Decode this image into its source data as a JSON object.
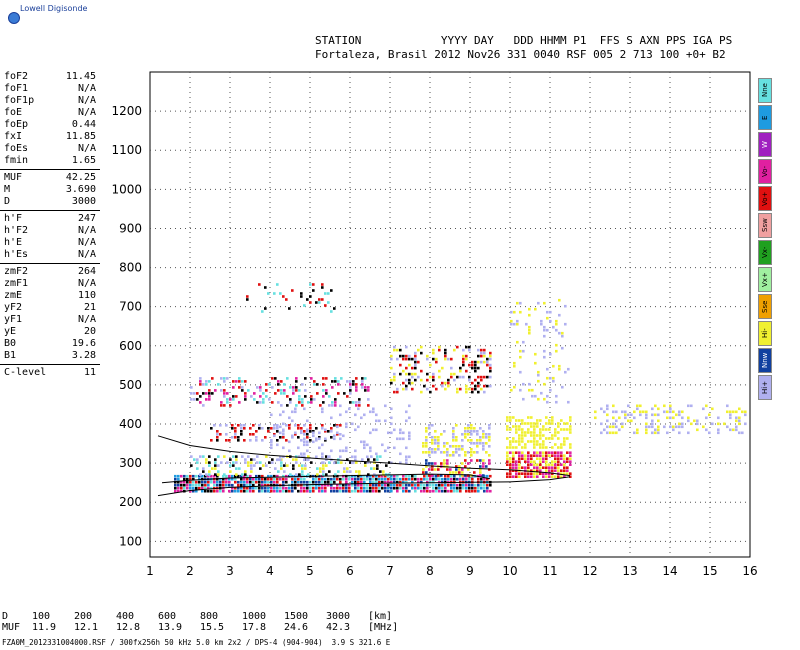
{
  "logo": {
    "text": "Lowell Digisonde",
    "icon": "globe-icon"
  },
  "header": {
    "line1": "STATION            YYYY DAY   DDD HHMM P1  FFS S AXN PPS IGA PS",
    "line2": "Fortaleza, Brasil 2012 Nov26 331 0040 RSF 005 2 713 100 +0+ B2"
  },
  "params": [
    [
      {
        "name": "foF2",
        "value": "11.45"
      },
      {
        "name": "foF1",
        "value": "N/A"
      },
      {
        "name": "foF1p",
        "value": "N/A"
      },
      {
        "name": "foE",
        "value": "N/A"
      },
      {
        "name": "foEp",
        "value": "0.44"
      },
      {
        "name": "fxI",
        "value": "11.85"
      },
      {
        "name": "foEs",
        "value": "N/A"
      },
      {
        "name": "fmin",
        "value": "1.65"
      }
    ],
    [
      {
        "name": "MUF",
        "value": "42.25"
      },
      {
        "name": "M",
        "value": "3.690"
      },
      {
        "name": "D",
        "value": "3000"
      }
    ],
    [
      {
        "name": "h'F",
        "value": "247"
      },
      {
        "name": "h'F2",
        "value": "N/A"
      },
      {
        "name": "h'E",
        "value": "N/A"
      },
      {
        "name": "h'Es",
        "value": "N/A"
      }
    ],
    [
      {
        "name": "zmF2",
        "value": "264"
      },
      {
        "name": "zmF1",
        "value": "N/A"
      },
      {
        "name": "zmE",
        "value": "110"
      },
      {
        "name": "yF2",
        "value": "21"
      },
      {
        "name": "yF1",
        "value": "N/A"
      },
      {
        "name": "yE",
        "value": "20"
      },
      {
        "name": "B0",
        "value": "19.6"
      },
      {
        "name": "B1",
        "value": "3.28"
      }
    ],
    [
      {
        "name": "C-level",
        "value": "11"
      }
    ]
  ],
  "legend": [
    {
      "label": "Nne",
      "color": "#66e0e0"
    },
    {
      "label": "E",
      "color": "#1e9be0"
    },
    {
      "label": "W",
      "color": "#a020c0"
    },
    {
      "label": "Vo-",
      "color": "#e020a0"
    },
    {
      "label": "Vo+",
      "color": "#e01010"
    },
    {
      "label": "Ssw",
      "color": "#f0a0a0"
    },
    {
      "label": "Vx-",
      "color": "#20a020"
    },
    {
      "label": "Vx+",
      "color": "#a0f0a0"
    },
    {
      "label": "Sse",
      "color": "#f0a000"
    },
    {
      "label": "Hi-",
      "color": "#f0f030"
    },
    {
      "label": "Nnw",
      "color": "#1040a0"
    },
    {
      "label": "Hi+",
      "color": "#b0b0f0"
    }
  ],
  "bottom": {
    "d_label": "D",
    "d_values": [
      "100",
      "200",
      "400",
      "600",
      "800",
      "1000",
      "1500",
      "3000",
      "[km]"
    ],
    "muf_label": "MUF",
    "muf_values": [
      "11.9",
      "12.1",
      "12.8",
      "13.9",
      "15.5",
      "17.8",
      "24.6",
      "42.3",
      "[MHz]"
    ]
  },
  "footer": "FZA0M_2012331004000.RSF / 300fx256h 50 kHz 5.0 km 2x2 / DPS-4 (904-904)  3.9 S 321.6 E",
  "chart_data": {
    "type": "scatter",
    "xlim": [
      1,
      16
    ],
    "ylim": [
      60,
      1300
    ],
    "xticks": [
      "1",
      "2",
      "3",
      "4",
      "5",
      "6",
      "7",
      "8",
      "9",
      "10",
      "11",
      "12",
      "13",
      "14",
      "15",
      "16"
    ],
    "yticks": [
      "100",
      "200",
      "300",
      "400",
      "500",
      "600",
      "700",
      "800",
      "900",
      "1000",
      "1100",
      "1200"
    ],
    "grid": true,
    "echo_clusters": [
      {
        "xmin": 1.6,
        "xmax": 9.5,
        "ymin": 225,
        "ymax": 270,
        "colors": [
          "#e01010",
          "#1e9be0",
          "#e020a0",
          "#66e0e0",
          "#000000",
          "#1040a0"
        ],
        "density": 0.9
      },
      {
        "xmin": 9.9,
        "xmax": 11.5,
        "ymin": 265,
        "ymax": 330,
        "colors": [
          "#e01010",
          "#e020a0",
          "#f0f030"
        ],
        "density": 0.85
      },
      {
        "xmin": 2.0,
        "xmax": 7.0,
        "ymin": 270,
        "ymax": 320,
        "colors": [
          "#000000",
          "#b0b0f0",
          "#f0f030",
          "#66e0e0"
        ],
        "density": 0.35
      },
      {
        "xmin": 7.8,
        "xmax": 9.5,
        "ymin": 270,
        "ymax": 310,
        "colors": [
          "#e01010",
          "#e020a0",
          "#1040a0",
          "#f0f030"
        ],
        "density": 0.5
      },
      {
        "xmin": 2.5,
        "xmax": 5.8,
        "ymin": 360,
        "ymax": 400,
        "colors": [
          "#000000",
          "#b0b0f0",
          "#e01010"
        ],
        "density": 0.4
      },
      {
        "xmin": 4.0,
        "xmax": 7.5,
        "ymin": 300,
        "ymax": 450,
        "colors": [
          "#b0b0f0"
        ],
        "density": 0.15
      },
      {
        "xmin": 7.8,
        "xmax": 9.5,
        "ymin": 320,
        "ymax": 400,
        "colors": [
          "#f0f030",
          "#b0b0f0"
        ],
        "density": 0.45
      },
      {
        "xmin": 9.9,
        "xmax": 11.5,
        "ymin": 340,
        "ymax": 420,
        "colors": [
          "#f0f030"
        ],
        "density": 0.5
      },
      {
        "xmin": 2.0,
        "xmax": 6.5,
        "ymin": 450,
        "ymax": 520,
        "colors": [
          "#000000",
          "#e01010",
          "#66e0e0",
          "#b0b0f0",
          "#e020a0"
        ],
        "density": 0.3
      },
      {
        "xmin": 7.0,
        "xmax": 9.5,
        "ymin": 480,
        "ymax": 600,
        "colors": [
          "#000000",
          "#f0f030",
          "#b0b0f0",
          "#e01010"
        ],
        "density": 0.3
      },
      {
        "xmin": 10.0,
        "xmax": 11.5,
        "ymin": 450,
        "ymax": 720,
        "colors": [
          "#b0b0f0",
          "#f0f030"
        ],
        "density": 0.12
      },
      {
        "xmin": 12.1,
        "xmax": 15.9,
        "ymin": 380,
        "ymax": 450,
        "colors": [
          "#f0f030",
          "#b0b0f0"
        ],
        "density": 0.3
      },
      {
        "xmin": 3.4,
        "xmax": 5.6,
        "ymin": 690,
        "ymax": 760,
        "colors": [
          "#000000",
          "#66e0e0",
          "#e01010"
        ],
        "density": 0.12
      }
    ],
    "trace_curves": [
      {
        "name": "",
        "x": [
          1.2,
          2,
          3,
          4,
          5,
          6,
          7,
          8,
          9,
          10,
          11,
          11.5
        ],
        "y": [
          217,
          230,
          238,
          242,
          245,
          247,
          249,
          250,
          251,
          252,
          258,
          265
        ]
      },
      {
        "name": "",
        "x": [
          1.2,
          2,
          3,
          4,
          5,
          6,
          7,
          8,
          9,
          10,
          11,
          11.5
        ],
        "y": [
          370,
          345,
          330,
          320,
          313,
          306,
          300,
          293,
          287,
          283,
          275,
          268
        ]
      },
      {
        "name": "",
        "x": [
          1.3,
          2,
          3,
          4,
          5,
          6,
          7,
          8,
          9,
          9.5
        ],
        "y": [
          250,
          256,
          262,
          264,
          266,
          268,
          270,
          272,
          270,
          260
        ]
      }
    ]
  }
}
